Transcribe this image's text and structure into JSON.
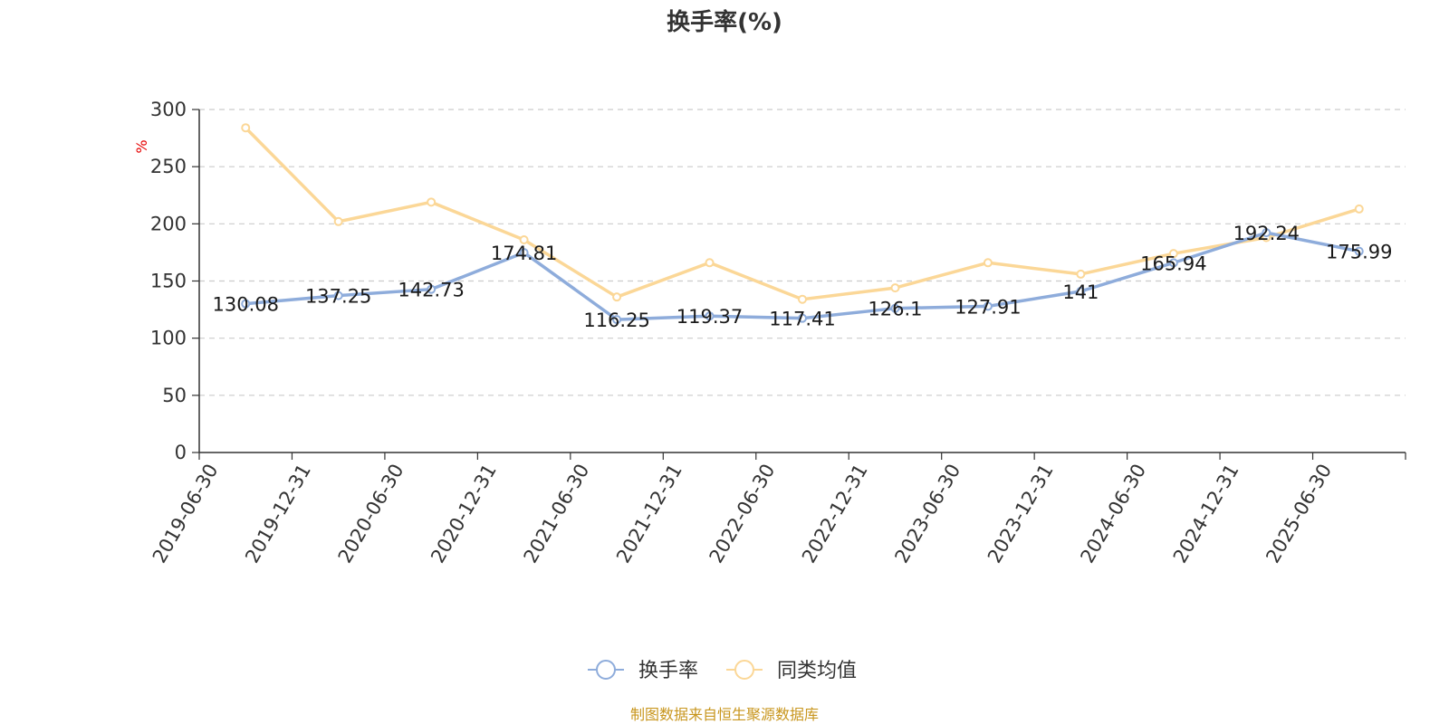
{
  "chart_data": {
    "type": "line",
    "title": "换手率(%)",
    "ylabel": "%",
    "ylim": [
      0,
      300
    ],
    "yticks": [
      0,
      50,
      100,
      150,
      200,
      250,
      300
    ],
    "grid": true,
    "legend_position": "bottom-center",
    "categories": [
      "2019-06-30",
      "2019-12-31",
      "2020-06-30",
      "2020-12-31",
      "2021-06-30",
      "2021-12-31",
      "2022-06-30",
      "2022-12-31",
      "2023-06-30",
      "2023-12-31",
      "2024-06-30",
      "2024-12-31",
      "2025-06-30"
    ],
    "series": [
      {
        "name": "换手率",
        "color": "#8eacdb",
        "values": [
          130.08,
          137.25,
          142.73,
          174.81,
          116.25,
          119.37,
          117.41,
          126.1,
          127.91,
          141,
          165.94,
          192.24,
          175.99
        ],
        "labels": [
          "130.08",
          "137.25",
          "142.73",
          "174.81",
          "116.25",
          "119.37",
          "117.41",
          "126.1",
          "127.91",
          "141",
          "165.94",
          "192.24",
          "175.99"
        ]
      },
      {
        "name": "同类均值",
        "color": "#fbd797",
        "values": [
          284,
          202,
          219,
          186,
          136,
          166,
          134,
          144,
          166,
          156,
          174,
          188,
          213
        ]
      }
    ]
  },
  "source_text": "制图数据来自恒生聚源数据库"
}
